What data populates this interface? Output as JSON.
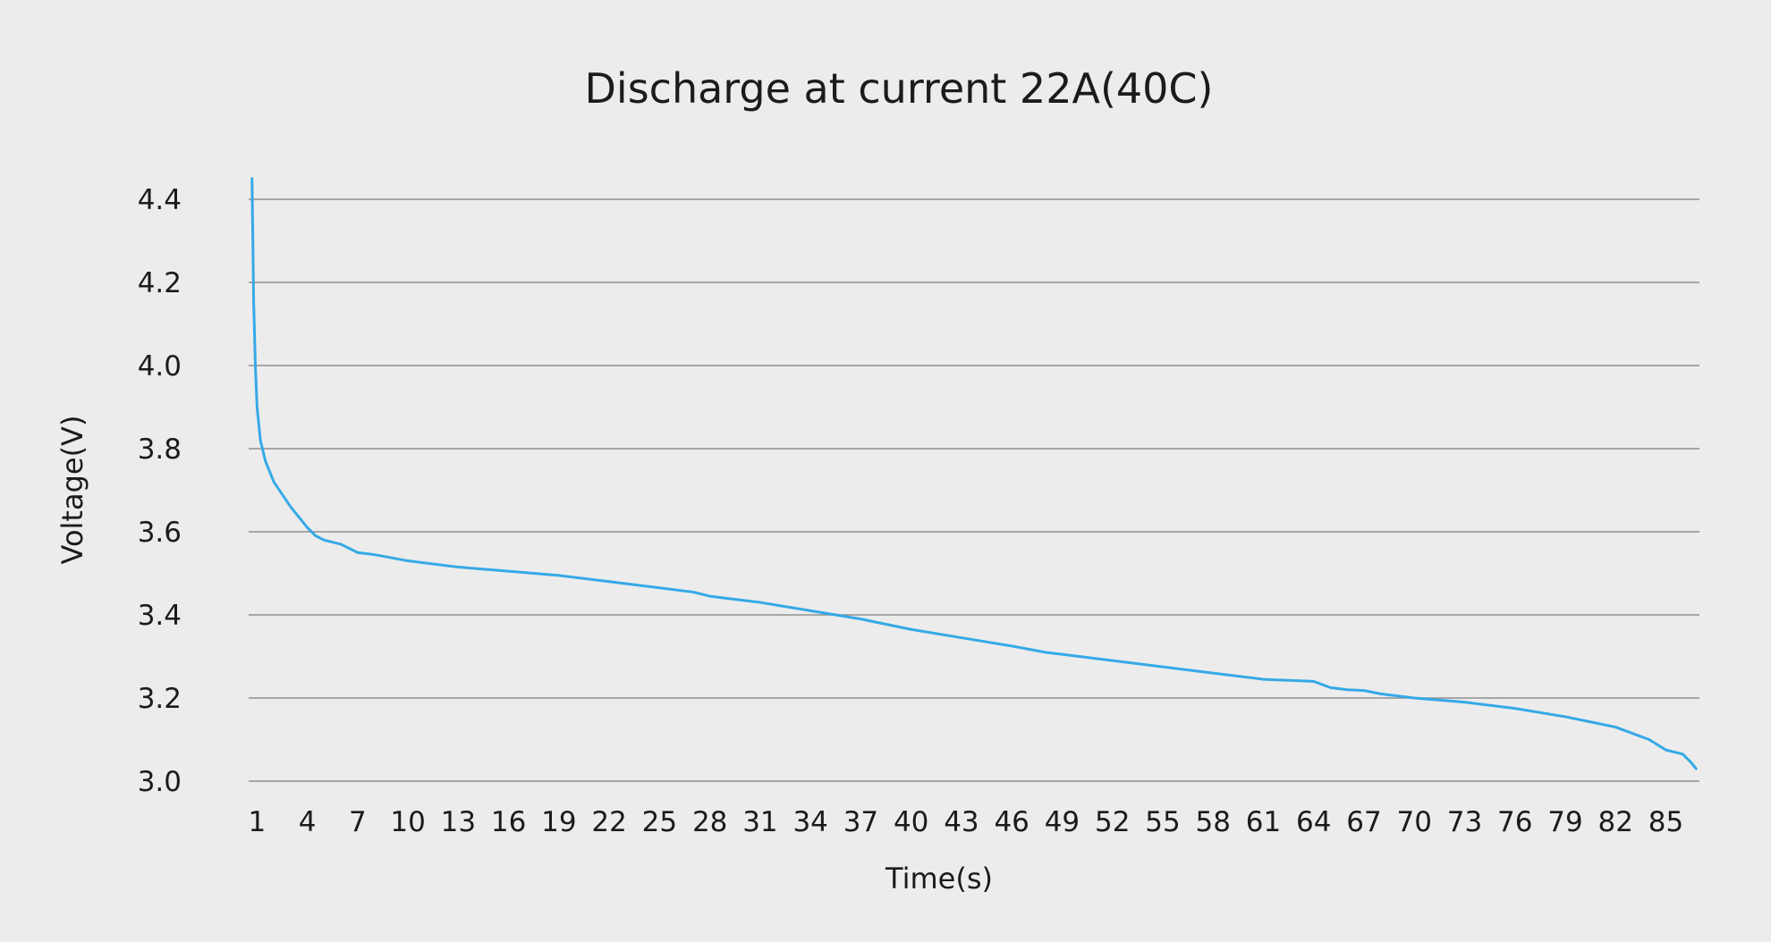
{
  "chart_data": {
    "type": "line",
    "title": "Discharge at current 22A(40C)",
    "xlabel": "Time(s)",
    "ylabel": "Voltage(V)",
    "xlim": [
      0.5,
      87
    ],
    "ylim": [
      3.0,
      4.4
    ],
    "grid": true,
    "legend": "none",
    "x_ticks": [
      "1",
      "4",
      "7",
      "10",
      "13",
      "16",
      "19",
      "22",
      "25",
      "28",
      "31",
      "34",
      "37",
      "40",
      "43",
      "46",
      "49",
      "52",
      "55",
      "58",
      "61",
      "64",
      "67",
      "70",
      "73",
      "76",
      "79",
      "82",
      "85"
    ],
    "y_ticks": [
      "3.0",
      "3.2",
      "3.4",
      "3.6",
      "3.8",
      "4.0",
      "4.2",
      "4.4"
    ],
    "series": [
      {
        "color": "#35a9e6",
        "points": [
          [
            0.7,
            4.45
          ],
          [
            0.8,
            4.15
          ],
          [
            0.9,
            4.0
          ],
          [
            1.0,
            3.9
          ],
          [
            1.2,
            3.82
          ],
          [
            1.5,
            3.77
          ],
          [
            2.0,
            3.72
          ],
          [
            3.0,
            3.66
          ],
          [
            4.0,
            3.61
          ],
          [
            4.5,
            3.59
          ],
          [
            5.0,
            3.58
          ],
          [
            6.0,
            3.57
          ],
          [
            7.0,
            3.55
          ],
          [
            8.0,
            3.545
          ],
          [
            10.0,
            3.53
          ],
          [
            13.0,
            3.515
          ],
          [
            16.0,
            3.505
          ],
          [
            19.0,
            3.495
          ],
          [
            22.0,
            3.48
          ],
          [
            25.0,
            3.465
          ],
          [
            27.0,
            3.455
          ],
          [
            28.0,
            3.445
          ],
          [
            30.0,
            3.435
          ],
          [
            31.0,
            3.43
          ],
          [
            34.0,
            3.41
          ],
          [
            37.0,
            3.39
          ],
          [
            40.0,
            3.365
          ],
          [
            43.0,
            3.345
          ],
          [
            46.0,
            3.325
          ],
          [
            48.0,
            3.31
          ],
          [
            49.0,
            3.305
          ],
          [
            52.0,
            3.29
          ],
          [
            55.0,
            3.275
          ],
          [
            58.0,
            3.26
          ],
          [
            61.0,
            3.245
          ],
          [
            64.0,
            3.24
          ],
          [
            65.0,
            3.225
          ],
          [
            66.0,
            3.22
          ],
          [
            67.0,
            3.218
          ],
          [
            68.0,
            3.21
          ],
          [
            70.0,
            3.2
          ],
          [
            73.0,
            3.19
          ],
          [
            76.0,
            3.175
          ],
          [
            79.0,
            3.155
          ],
          [
            82.0,
            3.13
          ],
          [
            84.0,
            3.1
          ],
          [
            85.0,
            3.075
          ],
          [
            85.5,
            3.07
          ],
          [
            86.0,
            3.065
          ],
          [
            86.5,
            3.045
          ],
          [
            86.8,
            3.03
          ]
        ]
      }
    ]
  }
}
